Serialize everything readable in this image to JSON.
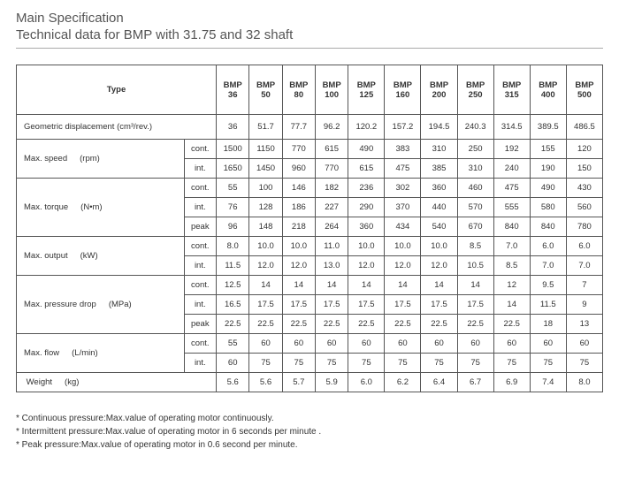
{
  "header": {
    "title": "Main Specification",
    "subtitle": "Technical data for BMP with 31.75 and 32 shaft"
  },
  "table": {
    "type_label": "Type",
    "models_line1": [
      "BMP",
      "BMP",
      "BMP",
      "BMP",
      "BMP",
      "BMP",
      "BMP",
      "BMP",
      "BMP",
      "BMP",
      "BMP"
    ],
    "models_line2": [
      "36",
      "50",
      "80",
      "100",
      "125",
      "160",
      "200",
      "250",
      "315",
      "400",
      "500"
    ],
    "geo_label": "Geometric displacement (cm³/rev.)",
    "geo_values": [
      "36",
      "51.7",
      "77.7",
      "96.2",
      "120.2",
      "157.2",
      "194.5",
      "240.3",
      "314.5",
      "389.5",
      "486.5"
    ],
    "rows": [
      {
        "label": "Max. speed",
        "unit": "(rpm)",
        "subs": [
          {
            "k": "cont.",
            "v": [
              "1500",
              "1150",
              "770",
              "615",
              "490",
              "383",
              "310",
              "250",
              "192",
              "155",
              "120"
            ]
          },
          {
            "k": "int.",
            "v": [
              "1650",
              "1450",
              "960",
              "770",
              "615",
              "475",
              "385",
              "310",
              "240",
              "190",
              "150"
            ]
          }
        ]
      },
      {
        "label": "Max. torque",
        "unit": "(N•m)",
        "subs": [
          {
            "k": "cont.",
            "v": [
              "55",
              "100",
              "146",
              "182",
              "236",
              "302",
              "360",
              "460",
              "475",
              "490",
              "430"
            ]
          },
          {
            "k": "int.",
            "v": [
              "76",
              "128",
              "186",
              "227",
              "290",
              "370",
              "440",
              "570",
              "555",
              "580",
              "560"
            ]
          },
          {
            "k": "peak",
            "v": [
              "96",
              "148",
              "218",
              "264",
              "360",
              "434",
              "540",
              "670",
              "840",
              "840",
              "780"
            ]
          }
        ]
      },
      {
        "label": "Max. output",
        "unit": "(kW)",
        "subs": [
          {
            "k": "cont.",
            "v": [
              "8.0",
              "10.0",
              "10.0",
              "11.0",
              "10.0",
              "10.0",
              "10.0",
              "8.5",
              "7.0",
              "6.0",
              "6.0"
            ]
          },
          {
            "k": "int.",
            "v": [
              "11.5",
              "12.0",
              "12.0",
              "13.0",
              "12.0",
              "12.0",
              "12.0",
              "10.5",
              "8.5",
              "7.0",
              "7.0"
            ]
          }
        ]
      },
      {
        "label": "Max. pressure drop",
        "unit": "(MPa)",
        "subs": [
          {
            "k": "cont.",
            "v": [
              "12.5",
              "14",
              "14",
              "14",
              "14",
              "14",
              "14",
              "14",
              "12",
              "9.5",
              "7"
            ]
          },
          {
            "k": "int.",
            "v": [
              "16.5",
              "17.5",
              "17.5",
              "17.5",
              "17.5",
              "17.5",
              "17.5",
              "17.5",
              "14",
              "11.5",
              "9"
            ]
          },
          {
            "k": "peak",
            "v": [
              "22.5",
              "22.5",
              "22.5",
              "22.5",
              "22.5",
              "22.5",
              "22.5",
              "22.5",
              "22.5",
              "18",
              "13"
            ]
          }
        ]
      },
      {
        "label": "Max. flow",
        "unit": "(L/min)",
        "subs": [
          {
            "k": "cont.",
            "v": [
              "55",
              "60",
              "60",
              "60",
              "60",
              "60",
              "60",
              "60",
              "60",
              "60",
              "60"
            ]
          },
          {
            "k": "int.",
            "v": [
              "60",
              "75",
              "75",
              "75",
              "75",
              "75",
              "75",
              "75",
              "75",
              "75",
              "75"
            ]
          }
        ]
      }
    ],
    "weight_label": "Weight",
    "weight_unit": "(kg)",
    "weight_values": [
      "5.6",
      "5.6",
      "5.7",
      "5.9",
      "6.0",
      "6.2",
      "6.4",
      "6.7",
      "6.9",
      "7.4",
      "8.0"
    ]
  },
  "footnotes": [
    "* Continuous pressure:Max.value of operating motor continuously.",
    "* Intermittent pressure:Max.value of operating motor in 6 seconds per minute .",
    "* Peak pressure:Max.value of operating motor in 0.6 second per minute."
  ]
}
